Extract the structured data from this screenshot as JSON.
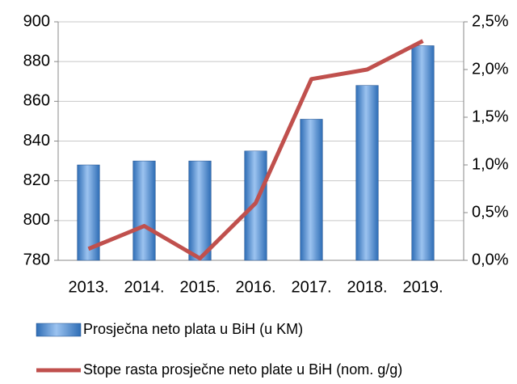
{
  "chart_data": {
    "type": "bar",
    "categories": [
      "2013.",
      "2014.",
      "2015.",
      "2016.",
      "2017.",
      "2018.",
      "2019."
    ],
    "series": [
      {
        "name": "Prosječna neto plata u BiH (u KM)",
        "type": "bar",
        "color": "#2e6db5",
        "values": [
          828,
          830,
          830,
          835,
          851,
          868,
          888
        ]
      },
      {
        "name": "Stope rasta prosječne neto plate u BiH (nom. g/g)",
        "type": "line",
        "axis": "y2",
        "color": "#c0504d",
        "values": [
          0.12,
          0.36,
          0.02,
          0.6,
          1.9,
          2.0,
          2.3
        ]
      }
    ],
    "ylim": [
      780,
      900
    ],
    "yticks": [
      780,
      800,
      820,
      840,
      860,
      880,
      900
    ],
    "y2lim": [
      0,
      2.5
    ],
    "y2ticks": [
      {
        "value": 0,
        "label": "0,0%"
      },
      {
        "value": 0.5,
        "label": "0,5%"
      },
      {
        "value": 1,
        "label": "1,0%"
      },
      {
        "value": 1.5,
        "label": "1,5%"
      },
      {
        "value": 2,
        "label": "2,0%"
      },
      {
        "value": 2.5,
        "label": "2,5%"
      }
    ],
    "grid": true,
    "legend": "bottom"
  }
}
